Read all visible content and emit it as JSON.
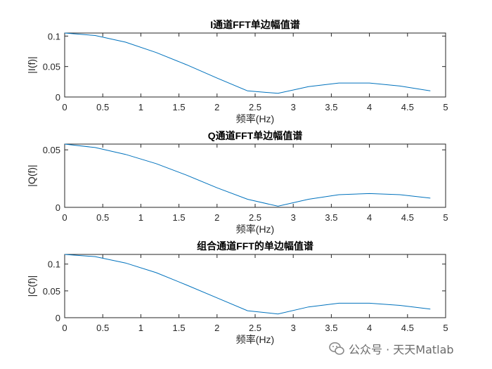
{
  "colors": {
    "series": "#0072bd",
    "axis": "#262626"
  },
  "chart_data": [
    {
      "type": "line",
      "title": "I通道FFT单边幅值谱",
      "xlabel": "频率(Hz)",
      "ylabel": "|I(f)|",
      "xlim": [
        0,
        5
      ],
      "ylim": [
        0,
        0.105
      ],
      "xticks": [
        0,
        0.5,
        1,
        1.5,
        2,
        2.5,
        3,
        3.5,
        4,
        4.5,
        5
      ],
      "xtick_labels": [
        "0",
        "0.5",
        "1",
        "1.5",
        "2",
        "2.5",
        "3",
        "3.5",
        "4",
        "4.5",
        "5"
      ],
      "yticks": [
        0,
        0.05,
        0.1
      ],
      "ytick_labels": [
        "0",
        "0.05",
        "0.1"
      ],
      "grid": false,
      "series": [
        {
          "x": [
            0,
            0.4,
            0.8,
            1.2,
            1.6,
            2.0,
            2.4,
            2.8,
            3.2,
            3.6,
            4.0,
            4.4,
            4.8
          ],
          "y": [
            0.105,
            0.101,
            0.09,
            0.073,
            0.053,
            0.031,
            0.01,
            0.006,
            0.017,
            0.023,
            0.023,
            0.018,
            0.01
          ]
        }
      ]
    },
    {
      "type": "line",
      "title": "Q通道FFT单边幅值谱",
      "xlabel": "频率(Hz)",
      "ylabel": "|Q(f)|",
      "xlim": [
        0,
        5
      ],
      "ylim": [
        0,
        0.055
      ],
      "xticks": [
        0,
        0.5,
        1,
        1.5,
        2,
        2.5,
        3,
        3.5,
        4,
        4.5,
        5
      ],
      "xtick_labels": [
        "0",
        "0.5",
        "1",
        "1.5",
        "2",
        "2.5",
        "3",
        "3.5",
        "4",
        "4.5",
        "5"
      ],
      "yticks": [
        0,
        0.05
      ],
      "ytick_labels": [
        "0",
        "0.05"
      ],
      "grid": false,
      "series": [
        {
          "x": [
            0,
            0.4,
            0.8,
            1.2,
            1.6,
            2.0,
            2.4,
            2.8,
            3.2,
            3.6,
            4.0,
            4.4,
            4.8
          ],
          "y": [
            0.055,
            0.052,
            0.046,
            0.038,
            0.028,
            0.017,
            0.007,
            0.001,
            0.007,
            0.011,
            0.012,
            0.011,
            0.008
          ]
        }
      ]
    },
    {
      "type": "line",
      "title": "组合通道FFT的单边幅值谱",
      "xlabel": "频率(Hz)",
      "ylabel": "|C(f)|",
      "xlim": [
        0,
        5
      ],
      "ylim": [
        0,
        0.118
      ],
      "xticks": [
        0,
        0.5,
        1,
        1.5,
        2,
        2.5,
        3,
        3.5,
        4,
        4.5,
        5
      ],
      "xtick_labels": [
        "0",
        "0.5",
        "1",
        "1.5",
        "2",
        "2.5",
        "3",
        "3.5",
        "4",
        "4.5",
        "5"
      ],
      "yticks": [
        0,
        0.05,
        0.1
      ],
      "ytick_labels": [
        "0",
        "0.05",
        "0.1"
      ],
      "grid": false,
      "series": [
        {
          "x": [
            0,
            0.4,
            0.8,
            1.2,
            1.6,
            2.0,
            2.4,
            2.8,
            3.2,
            3.6,
            4.0,
            4.4,
            4.8
          ],
          "y": [
            0.118,
            0.114,
            0.102,
            0.084,
            0.061,
            0.037,
            0.013,
            0.007,
            0.02,
            0.027,
            0.027,
            0.023,
            0.016
          ]
        }
      ]
    }
  ],
  "watermark": {
    "text": "公众号 · 天天Matlab",
    "icon": "wechat-icon"
  }
}
